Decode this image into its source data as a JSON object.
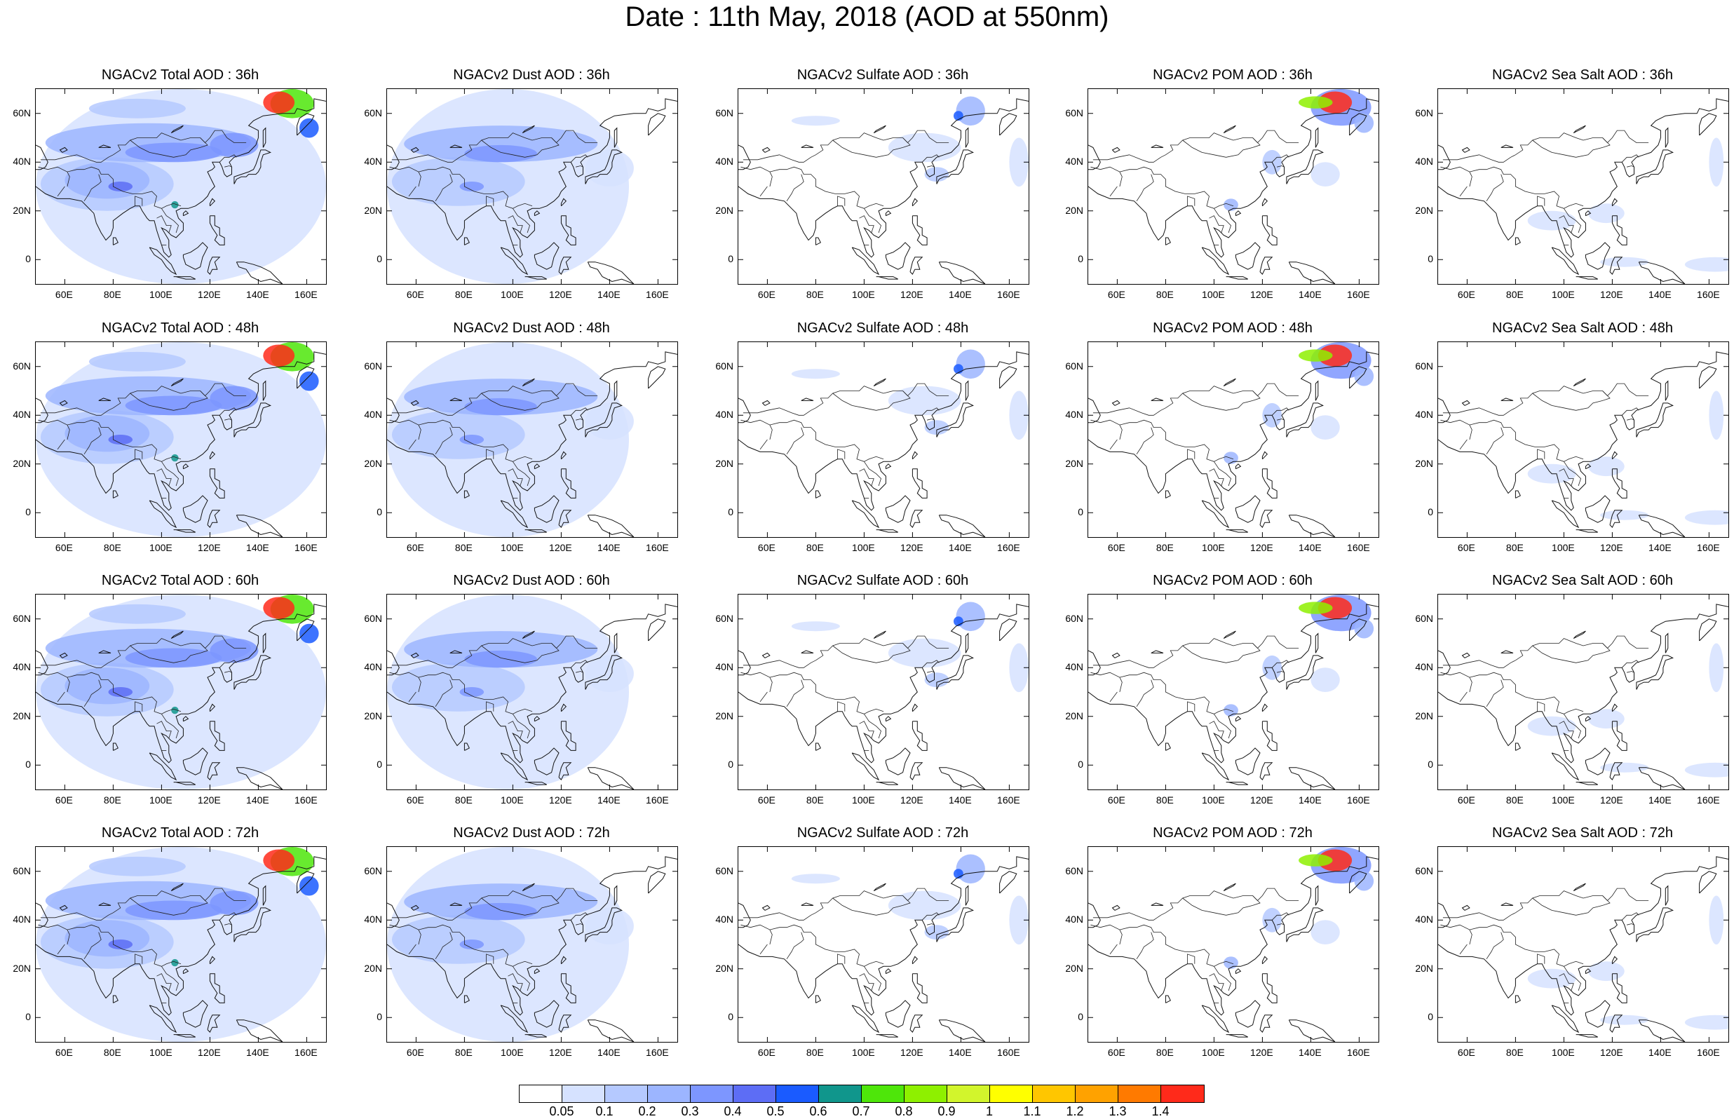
{
  "title": "Date : 11th May, 2018 (AOD at 550nm)",
  "lat_ticks": [
    "60N",
    "40N",
    "20N",
    "0"
  ],
  "lon_ticks": [
    "60E",
    "80E",
    "100E",
    "120E",
    "140E",
    "160E"
  ],
  "panels": [
    [
      "NGACv2 Total AOD : 36h",
      "NGACv2 Dust AOD : 36h",
      "NGACv2 Sulfate AOD : 36h",
      "NGACv2 POM AOD : 36h",
      "NGACv2 Sea Salt AOD : 36h"
    ],
    [
      "NGACv2 Total AOD : 48h",
      "NGACv2 Dust AOD : 48h",
      "NGACv2 Sulfate AOD : 48h",
      "NGACv2 POM AOD : 48h",
      "NGACv2 Sea Salt AOD : 48h"
    ],
    [
      "NGACv2 Total AOD : 60h",
      "NGACv2 Dust AOD : 60h",
      "NGACv2 Sulfate AOD : 60h",
      "NGACv2 POM AOD : 60h",
      "NGACv2 Sea Salt AOD : 60h"
    ],
    [
      "NGACv2 Total AOD : 72h",
      "NGACv2 Dust AOD : 72h",
      "NGACv2 Sulfate AOD : 72h",
      "NGACv2 POM AOD : 72h",
      "NGACv2 Sea Salt  AOD : 72h"
    ]
  ],
  "colorbar": {
    "labels": [
      "0.05",
      "0.1",
      "0.2",
      "0.3",
      "0.4",
      "0.5",
      "0.6",
      "0.7",
      "0.8",
      "0.9",
      "1",
      "1.1",
      "1.2",
      "1.3",
      "1.4"
    ],
    "colors": [
      "#ffffff",
      "#d6e2ff",
      "#b5c9ff",
      "#9cb5ff",
      "#7d96ff",
      "#5d6df5",
      "#1a5bff",
      "#10968c",
      "#4ee60a",
      "#8ef000",
      "#d2f52c",
      "#ffff00",
      "#ffc600",
      "#ffa200",
      "#ff7a00",
      "#ff2a1a"
    ]
  }
}
